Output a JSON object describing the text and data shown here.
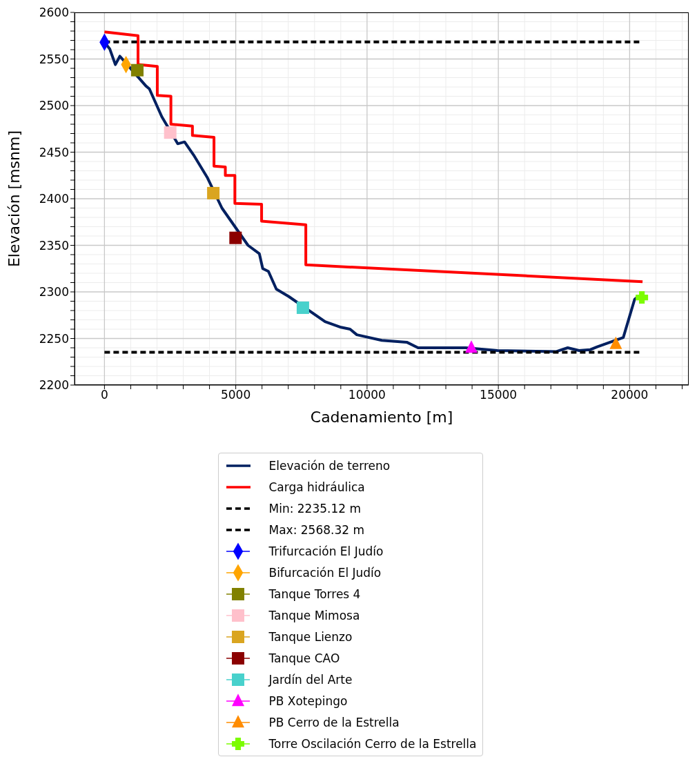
{
  "chart_data": {
    "type": "line",
    "xlabel": "Cadenamiento [m]",
    "ylabel": "Elevación [msnm]",
    "xlim": [
      -1140,
      22250
    ],
    "ylim": [
      2200,
      2600
    ],
    "xticks": [
      0,
      {
        "value": 1000,
        "label": null
      },
      {
        "value": 2000,
        "label": null
      },
      {
        "value": 3000,
        "label": null
      },
      {
        "value": 4000,
        "label": null
      },
      5000,
      {
        "value": 6000,
        "label": null
      },
      {
        "value": 7000,
        "label": null
      },
      {
        "value": 8000,
        "label": null
      },
      {
        "value": 9000,
        "label": null
      },
      10000,
      {
        "value": 11000,
        "label": null
      },
      {
        "value": 12000,
        "label": null
      },
      {
        "value": 13000,
        "label": null
      },
      {
        "value": 14000,
        "label": null
      },
      15000,
      {
        "value": 16000,
        "label": null
      },
      {
        "value": 17000,
        "label": null
      },
      {
        "value": 18000,
        "label": null
      },
      {
        "value": 19000,
        "label": null
      },
      20000,
      {
        "value": 21000,
        "label": null
      },
      {
        "value": 22000,
        "label": null
      }
    ],
    "yticks": [
      2200,
      {
        "value": 2210,
        "label": null
      },
      {
        "value": 2220,
        "label": null
      },
      {
        "value": 2230,
        "label": null
      },
      {
        "value": 2240,
        "label": null
      },
      2250,
      {
        "value": 2260,
        "label": null
      },
      {
        "value": 2270,
        "label": null
      },
      {
        "value": 2280,
        "label": null
      },
      {
        "value": 2290,
        "label": null
      },
      2300,
      {
        "value": 2310,
        "label": null
      },
      {
        "value": 2320,
        "label": null
      },
      {
        "value": 2330,
        "label": null
      },
      {
        "value": 2340,
        "label": null
      },
      2350,
      {
        "value": 2360,
        "label": null
      },
      {
        "value": 2370,
        "label": null
      },
      {
        "value": 2380,
        "label": null
      },
      {
        "value": 2390,
        "label": null
      },
      2400,
      {
        "value": 2410,
        "label": null
      },
      {
        "value": 2420,
        "label": null
      },
      {
        "value": 2430,
        "label": null
      },
      {
        "value": 2440,
        "label": null
      },
      2450,
      {
        "value": 2460,
        "label": null
      },
      {
        "value": 2470,
        "label": null
      },
      {
        "value": 2480,
        "label": null
      },
      {
        "value": 2490,
        "label": null
      },
      2500,
      {
        "value": 2510,
        "label": null
      },
      {
        "value": 2520,
        "label": null
      },
      {
        "value": 2530,
        "label": null
      },
      {
        "value": 2540,
        "label": null
      },
      2550,
      {
        "value": 2560,
        "label": null
      },
      {
        "value": 2570,
        "label": null
      },
      {
        "value": 2580,
        "label": null
      },
      {
        "value": 2590,
        "label": null
      },
      2600
    ],
    "grid": true,
    "legend": "bottom",
    "line_style": "solid",
    "marker": "none",
    "series": [
      {
        "name": "Elevación de terreno",
        "color": "#002060",
        "x": [
          0,
          199,
          415,
          587,
          803,
          1580,
          1710,
          2185,
          2790,
          3050,
          3394,
          3912,
          4473,
          5466,
          5898,
          6027,
          6244,
          6546,
          7021,
          8402,
          9007,
          9352,
          9611,
          10561,
          11511,
          11943,
          12893,
          13756,
          14966,
          17210,
          17642,
          18074,
          18505,
          18764,
          19758,
          20190,
          20319
        ],
        "values": [
          2568,
          2561,
          2544,
          2553,
          2546,
          2521,
          2518,
          2488,
          2459,
          2461,
          2447,
          2423,
          2390,
          2350,
          2341,
          2325,
          2322,
          2303,
          2295,
          2268,
          2262,
          2260,
          2254,
          2248,
          2246,
          2240,
          2240,
          2240,
          2237,
          2236,
          2240,
          2237,
          2238,
          2241,
          2251,
          2292,
          2295
        ]
      },
      {
        "name": "Carga hidráulica",
        "color": "#ff0000",
        "x": [
          0,
          1278,
          1278,
          2012,
          2012,
          2530,
          2530,
          3350,
          3350,
          4171,
          4171,
          4603,
          4603,
          4966,
          4966,
          5984,
          5984,
          7668,
          7668,
          20492
        ],
        "values": [
          2579,
          2575,
          2544,
          2542,
          2511,
          2510,
          2480,
          2478,
          2468,
          2466,
          2435,
          2434,
          2425,
          2425,
          2395,
          2394,
          2376,
          2372,
          2329,
          2311
        ]
      },
      {
        "name": "Min: 2235.12 m",
        "color": "#000000",
        "line_style": "dashed",
        "x": [
          0,
          20400
        ],
        "values": [
          2235.12,
          2235.12
        ]
      },
      {
        "name": "Max: 2568.32 m",
        "color": "#000000",
        "line_style": "dashed",
        "x": [
          0,
          20400
        ],
        "values": [
          2568.32,
          2568.32
        ]
      },
      {
        "name": "Trifurcación El Judío",
        "type": "scatter",
        "marker": "diamond",
        "color": "#0000ff",
        "x": [
          0
        ],
        "values": [
          2568
        ]
      },
      {
        "name": "Bifurcación El Judío",
        "type": "scatter",
        "marker": "diamond",
        "color": "#ffa500",
        "x": [
          821
        ],
        "values": [
          2544
        ]
      },
      {
        "name": "Tanque Torres 4",
        "type": "scatter",
        "marker": "square",
        "color": "#808000",
        "x": [
          1251
        ],
        "values": [
          2538
        ]
      },
      {
        "name": "Tanque Mimosa",
        "type": "scatter",
        "marker": "square",
        "color": "#ffc0cb",
        "x": [
          2505
        ],
        "values": [
          2471
        ]
      },
      {
        "name": "Tanque Lienzo",
        "type": "scatter",
        "marker": "square",
        "color": "#daa520",
        "x": [
          4145
        ],
        "values": [
          2406
        ]
      },
      {
        "name": "Tanque CAO",
        "type": "scatter",
        "marker": "square",
        "color": "#8b0000",
        "x": [
          4992
        ],
        "values": [
          2358
        ]
      },
      {
        "name": "Jardín del Arte",
        "type": "scatter",
        "marker": "square",
        "color": "#48d1cc",
        "x": [
          7557
        ],
        "values": [
          2283
        ]
      },
      {
        "name": "PB Xotepingo",
        "type": "scatter",
        "marker": "triangle",
        "color": "#ff00ff",
        "x": [
          13972
        ],
        "values": [
          2240
        ]
      },
      {
        "name": "PB Cerro de la Estrella",
        "type": "scatter",
        "marker": "triangle",
        "color": "#ff8c00",
        "x": [
          19474
        ],
        "values": [
          2244
        ]
      },
      {
        "name": "Torre Oscilación Cerro de la Estrella",
        "type": "scatter",
        "marker": "cross",
        "color": "#7cfc00",
        "x": [
          20466
        ],
        "values": [
          2294
        ]
      }
    ]
  }
}
